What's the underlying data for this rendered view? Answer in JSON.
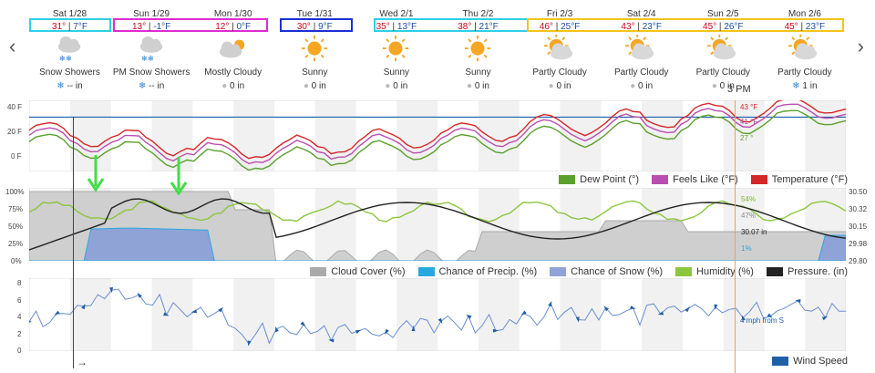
{
  "nav": {
    "prev": "‹",
    "next": "›"
  },
  "days": [
    {
      "date": "Sat 1/28",
      "hi": "31°",
      "lo": "7°F",
      "cond": "Snow Showers",
      "precip": "-- in",
      "icon": "snow"
    },
    {
      "date": "Sun 1/29",
      "hi": "13°",
      "lo": "-1°F",
      "cond": "PM Snow Showers",
      "precip": "-- in",
      "icon": "snow"
    },
    {
      "date": "Mon 1/30",
      "hi": "12°",
      "lo": "0°F",
      "cond": "Mostly Cloudy",
      "precip": "0 in",
      "icon": "cloudy-sun"
    },
    {
      "date": "Tue 1/31",
      "hi": "30°",
      "lo": "9°F",
      "cond": "Sunny",
      "precip": "0 in",
      "icon": "sun"
    },
    {
      "date": "Wed 2/1",
      "hi": "35°",
      "lo": "13°F",
      "cond": "Sunny",
      "precip": "0 in",
      "icon": "sun"
    },
    {
      "date": "Thu 2/2",
      "hi": "38°",
      "lo": "21°F",
      "cond": "Sunny",
      "precip": "0 in",
      "icon": "sun"
    },
    {
      "date": "Fri 2/3",
      "hi": "46°",
      "lo": "25°F",
      "cond": "Partly Cloudy",
      "precip": "0 in",
      "icon": "partly"
    },
    {
      "date": "Sat 2/4",
      "hi": "43°",
      "lo": "23°F",
      "cond": "Partly Cloudy",
      "precip": "0 in",
      "icon": "partly"
    },
    {
      "date": "Sun 2/5",
      "hi": "45°",
      "lo": "26°F",
      "cond": "Partly Cloudy",
      "precip": "0 in",
      "icon": "partly"
    },
    {
      "date": "Mon 2/6",
      "hi": "45°",
      "lo": "23°F",
      "cond": "Partly Cloudy",
      "precip": "1 in",
      "icon": "partly"
    }
  ],
  "cursor_label": "3 PM",
  "temp_chart": {
    "ylabels": [
      "40 F",
      "20 F",
      "0 F"
    ],
    "readouts": {
      "temp": "43 °F",
      "feels": "41 °F",
      "dew": "27 °"
    },
    "legend": [
      "Dew Point (°)",
      "Feels Like (°F)",
      "Temperature (°F)"
    ],
    "colors": {
      "dew": "#5aa02c",
      "feels": "#b94fb0",
      "temp": "#d62728",
      "freeze": "#1f5fa8"
    }
  },
  "humidity_chart": {
    "ylabels_left": [
      "100%",
      "75%",
      "50%",
      "25%",
      "0%"
    ],
    "ylabels_right": [
      "30.50",
      "30.32",
      "30.15",
      "29.98",
      "29.80"
    ],
    "readouts": {
      "humidity": "54%",
      "cloud": "47%",
      "pressure": "30.07 in",
      "precip": "1%"
    },
    "legend": [
      "Cloud Cover (%)",
      "Chance of Precip. (%)",
      "Chance of Snow (%)",
      "Humidity (%)",
      "Pressure. (in)"
    ],
    "colors": {
      "cloud": "#aaaaaa",
      "precip": "#29a8e0",
      "snow": "#8fa3d6",
      "humidity": "#8cc63f",
      "pressure": "#222222"
    }
  },
  "wind_chart": {
    "ylabels": [
      "8",
      "6",
      "4",
      "2",
      "0"
    ],
    "readout": "4 mph from S",
    "legend": [
      "Wind Speed"
    ],
    "color": "#1f5fa8"
  },
  "arrow_label": "→"
}
